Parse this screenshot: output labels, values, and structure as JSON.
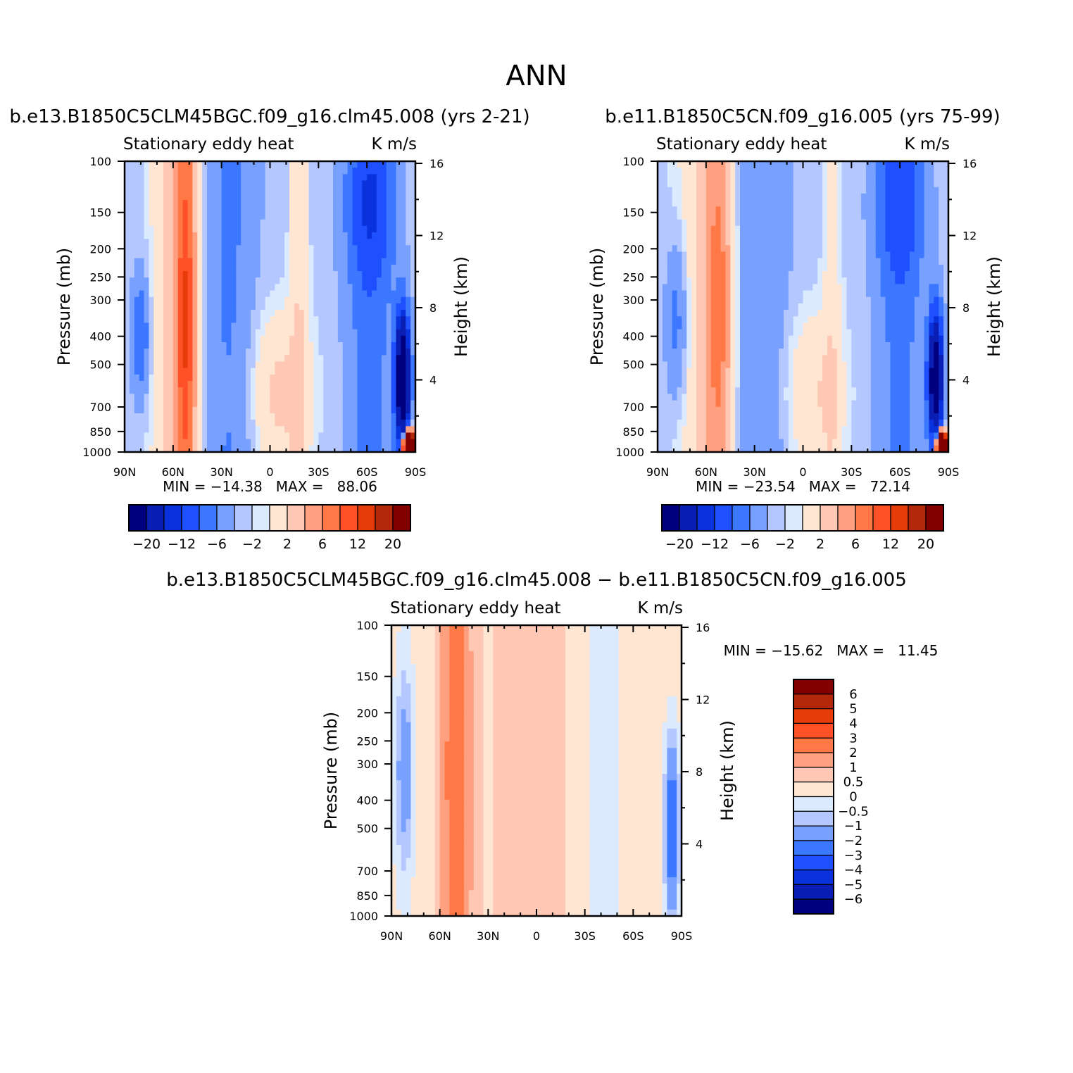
{
  "page_title": "ANN",
  "chart_data": [
    {
      "type": "heatmap",
      "title": "b.e13.B1850C5CLM45BGC.f09_g16.clm45.008 (yrs 2-21)",
      "left_subtitle": "Stationary eddy heat",
      "right_subtitle": "K m/s",
      "ylabel": "Pressure (mb)",
      "y2label": "Height (km)",
      "x_ticks": [
        "90N",
        "60N",
        "30N",
        "0",
        "30S",
        "60S",
        "90S"
      ],
      "x_range": [
        90,
        -90
      ],
      "y_ticks": [
        "100",
        "150",
        "200",
        "250",
        "300",
        "400",
        "500",
        "700",
        "850",
        "1000"
      ],
      "y_range": [
        100,
        1000
      ],
      "y2_ticks": [
        "16",
        "12",
        "8",
        "4"
      ],
      "stats": "MIN = −14.38   MAX =   88.06",
      "min": -14.38,
      "max": 88.06,
      "colorbar": {
        "orientation": "horizontal",
        "levels": [
          -20,
          -16,
          -12,
          -8,
          -6,
          -4,
          -2,
          -1,
          1,
          2,
          4,
          6,
          8,
          12,
          16,
          20
        ],
        "labels": [
          "−20",
          "−12",
          "−6",
          "−2",
          "2",
          "6",
          "12",
          "20"
        ]
      }
    },
    {
      "type": "heatmap",
      "title": "b.e11.B1850C5CN.f09_g16.005 (yrs 75-99)",
      "left_subtitle": "Stationary eddy heat",
      "right_subtitle": "K m/s",
      "ylabel": "Pressure (mb)",
      "y2label": "Height (km)",
      "x_ticks": [
        "90N",
        "60N",
        "30N",
        "0",
        "30S",
        "60S",
        "90S"
      ],
      "x_range": [
        90,
        -90
      ],
      "y_ticks": [
        "100",
        "150",
        "200",
        "250",
        "300",
        "400",
        "500",
        "700",
        "850",
        "1000"
      ],
      "y_range": [
        100,
        1000
      ],
      "y2_ticks": [
        "16",
        "12",
        "8",
        "4"
      ],
      "stats": "MIN = −23.54   MAX =   72.14",
      "min": -23.54,
      "max": 72.14,
      "colorbar": {
        "orientation": "horizontal",
        "levels": [
          -20,
          -16,
          -12,
          -8,
          -6,
          -4,
          -2,
          -1,
          1,
          2,
          4,
          6,
          8,
          12,
          16,
          20
        ],
        "labels": [
          "−20",
          "−12",
          "−6",
          "−2",
          "2",
          "6",
          "12",
          "20"
        ]
      }
    },
    {
      "type": "heatmap",
      "title": "b.e13.B1850C5CLM45BGC.f09_g16.clm45.008 − b.e11.B1850C5CN.f09_g16.005",
      "left_subtitle": "Stationary eddy heat",
      "right_subtitle": "K m/s",
      "ylabel": "Pressure (mb)",
      "y2label": "Height (km)",
      "x_ticks": [
        "90N",
        "60N",
        "30N",
        "0",
        "30S",
        "60S",
        "90S"
      ],
      "x_range": [
        90,
        -90
      ],
      "y_ticks": [
        "100",
        "150",
        "200",
        "250",
        "300",
        "400",
        "500",
        "700",
        "850",
        "1000"
      ],
      "y_range": [
        100,
        1000
      ],
      "y2_ticks": [
        "16",
        "12",
        "8",
        "4"
      ],
      "stats": "MIN = −15.62   MAX =   11.45",
      "min": -15.62,
      "max": 11.45,
      "colorbar": {
        "orientation": "vertical",
        "levels": [
          -6,
          -5,
          -4,
          -3,
          -2,
          -1,
          -0.5,
          0,
          0.5,
          1,
          2,
          3,
          4,
          5,
          6
        ],
        "labels": [
          "6",
          "5",
          "4",
          "3",
          "2",
          "1",
          "0.5",
          "0",
          "−0.5",
          "−1",
          "−2",
          "−3",
          "−4",
          "−5",
          "−6"
        ]
      }
    }
  ],
  "palette": [
    "#00007f",
    "#0a1eb4",
    "#0a32dc",
    "#1e50ff",
    "#3c78ff",
    "#78a0ff",
    "#b4c8ff",
    "#dceaff",
    "#ffe6d2",
    "#ffc8b4",
    "#ffa080",
    "#ff7846",
    "#ff5028",
    "#e63c0a",
    "#b4280a",
    "#820000"
  ]
}
